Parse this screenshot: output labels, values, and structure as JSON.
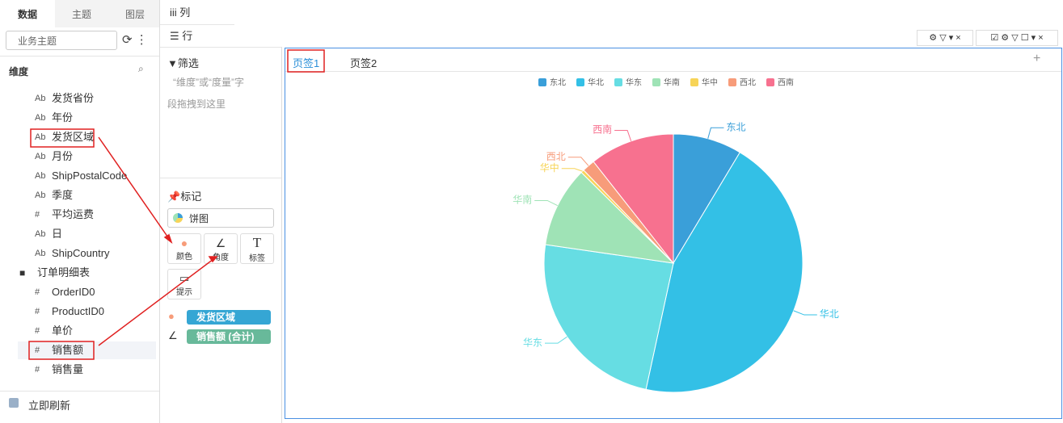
{
  "sidebar": {
    "tabs": [
      "数据",
      "主题",
      "图层"
    ],
    "search": "业务主题",
    "section": "维度",
    "fields": [
      {
        "icon": "Ab",
        "name": "发货省份"
      },
      {
        "icon": "Ab",
        "name": "年份"
      },
      {
        "icon": "Ab",
        "name": "发货区域"
      },
      {
        "icon": "Ab",
        "name": "月份"
      },
      {
        "icon": "Ab",
        "name": "ShipPostalCode"
      },
      {
        "icon": "Ab",
        "name": "季度"
      },
      {
        "icon": "#",
        "name": "平均运费"
      },
      {
        "icon": "Ab",
        "name": "日"
      },
      {
        "icon": "Ab",
        "name": "ShipCountry"
      }
    ],
    "folder": "订单明细表",
    "folder_fields": [
      {
        "icon": "#",
        "name": "OrderID0"
      },
      {
        "icon": "#",
        "name": "ProductID0"
      },
      {
        "icon": "#",
        "name": "单价"
      },
      {
        "icon": "#",
        "name": "销售额"
      },
      {
        "icon": "#",
        "name": "销售量"
      }
    ],
    "footer": "立即刷新"
  },
  "shelves": {
    "columns": "列",
    "rows": "行"
  },
  "filter": {
    "title": "筛选",
    "hint_line1": "“维度”或“度量”字",
    "hint_line2": "段拖拽到这里"
  },
  "marks": {
    "title": "标记",
    "chart_type": "饼图",
    "buttons": [
      "颜色",
      "角度",
      "标签",
      "提示"
    ],
    "color_field": "发货区域",
    "angle_field": "销售额 (合计)"
  },
  "chart_tabs": [
    "页签1",
    "页签2"
  ],
  "chart_data": {
    "type": "pie",
    "categories": [
      "东北",
      "华北",
      "华东",
      "华南",
      "华中",
      "西北",
      "西南"
    ],
    "values": [
      8.6,
      44.8,
      23.9,
      10.1,
      0.4,
      1.6,
      10.6
    ],
    "colors": [
      "#3a9fd9",
      "#33c0e6",
      "#66dde3",
      "#9fe3b6",
      "#f7d458",
      "#f79c7a",
      "#f7718f"
    ],
    "legend": "top"
  }
}
